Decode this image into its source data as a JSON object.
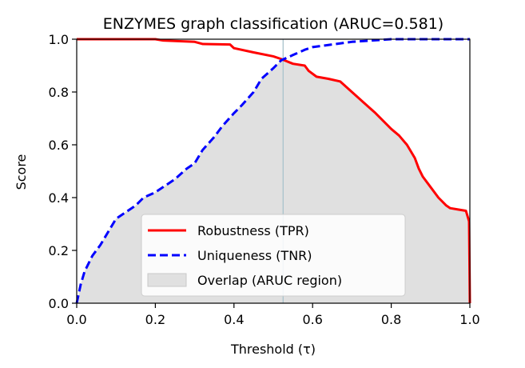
{
  "chart_data": {
    "type": "line",
    "title": "ENZYMES graph classification (ARUC=0.581)",
    "xlabel": "Threshold (τ)",
    "ylabel": "Score",
    "xlim": [
      0.0,
      1.0
    ],
    "ylim": [
      0.0,
      1.0
    ],
    "xticks": [
      "0.0",
      "0.2",
      "0.4",
      "0.6",
      "0.8",
      "1.0"
    ],
    "yticks": [
      "0.0",
      "0.2",
      "0.4",
      "0.6",
      "0.8",
      "1.0"
    ],
    "grid": false,
    "legend_position": "bottom-center",
    "vertical_line_x": 0.525,
    "fill": {
      "name": "Overlap (ARUC region)",
      "color": "#e0e0e0"
    },
    "series": [
      {
        "name": "Robustness (TPR)",
        "color": "#ff0000",
        "style": "solid",
        "points": [
          [
            0.0,
            1.0
          ],
          [
            0.2,
            1.0
          ],
          [
            0.22,
            0.995
          ],
          [
            0.3,
            0.99
          ],
          [
            0.32,
            0.982
          ],
          [
            0.39,
            0.98
          ],
          [
            0.4,
            0.966
          ],
          [
            0.45,
            0.95
          ],
          [
            0.5,
            0.935
          ],
          [
            0.52,
            0.925
          ],
          [
            0.55,
            0.907
          ],
          [
            0.58,
            0.9
          ],
          [
            0.59,
            0.88
          ],
          [
            0.61,
            0.858
          ],
          [
            0.64,
            0.85
          ],
          [
            0.67,
            0.84
          ],
          [
            0.7,
            0.8
          ],
          [
            0.73,
            0.76
          ],
          [
            0.76,
            0.72
          ],
          [
            0.8,
            0.66
          ],
          [
            0.82,
            0.635
          ],
          [
            0.84,
            0.6
          ],
          [
            0.86,
            0.55
          ],
          [
            0.87,
            0.51
          ],
          [
            0.88,
            0.48
          ],
          [
            0.9,
            0.44
          ],
          [
            0.92,
            0.4
          ],
          [
            0.94,
            0.37
          ],
          [
            0.95,
            0.36
          ],
          [
            0.97,
            0.355
          ],
          [
            0.99,
            0.35
          ],
          [
            0.998,
            0.31
          ],
          [
            1.0,
            0.0
          ]
        ]
      },
      {
        "name": "Uniqueness (TNR)",
        "color": "#0000ff",
        "style": "dashed",
        "points": [
          [
            0.0,
            0.0
          ],
          [
            0.01,
            0.07
          ],
          [
            0.02,
            0.12
          ],
          [
            0.04,
            0.18
          ],
          [
            0.06,
            0.22
          ],
          [
            0.08,
            0.27
          ],
          [
            0.1,
            0.32
          ],
          [
            0.13,
            0.35
          ],
          [
            0.15,
            0.37
          ],
          [
            0.17,
            0.4
          ],
          [
            0.2,
            0.42
          ],
          [
            0.22,
            0.44
          ],
          [
            0.25,
            0.47
          ],
          [
            0.28,
            0.51
          ],
          [
            0.3,
            0.53
          ],
          [
            0.32,
            0.58
          ],
          [
            0.35,
            0.63
          ],
          [
            0.37,
            0.67
          ],
          [
            0.4,
            0.72
          ],
          [
            0.42,
            0.75
          ],
          [
            0.45,
            0.8
          ],
          [
            0.47,
            0.85
          ],
          [
            0.5,
            0.89
          ],
          [
            0.52,
            0.92
          ],
          [
            0.55,
            0.94
          ],
          [
            0.58,
            0.96
          ],
          [
            0.6,
            0.97
          ],
          [
            0.65,
            0.98
          ],
          [
            0.7,
            0.99
          ],
          [
            0.75,
            0.995
          ],
          [
            0.8,
            1.0
          ],
          [
            1.0,
            1.0
          ]
        ]
      }
    ]
  }
}
